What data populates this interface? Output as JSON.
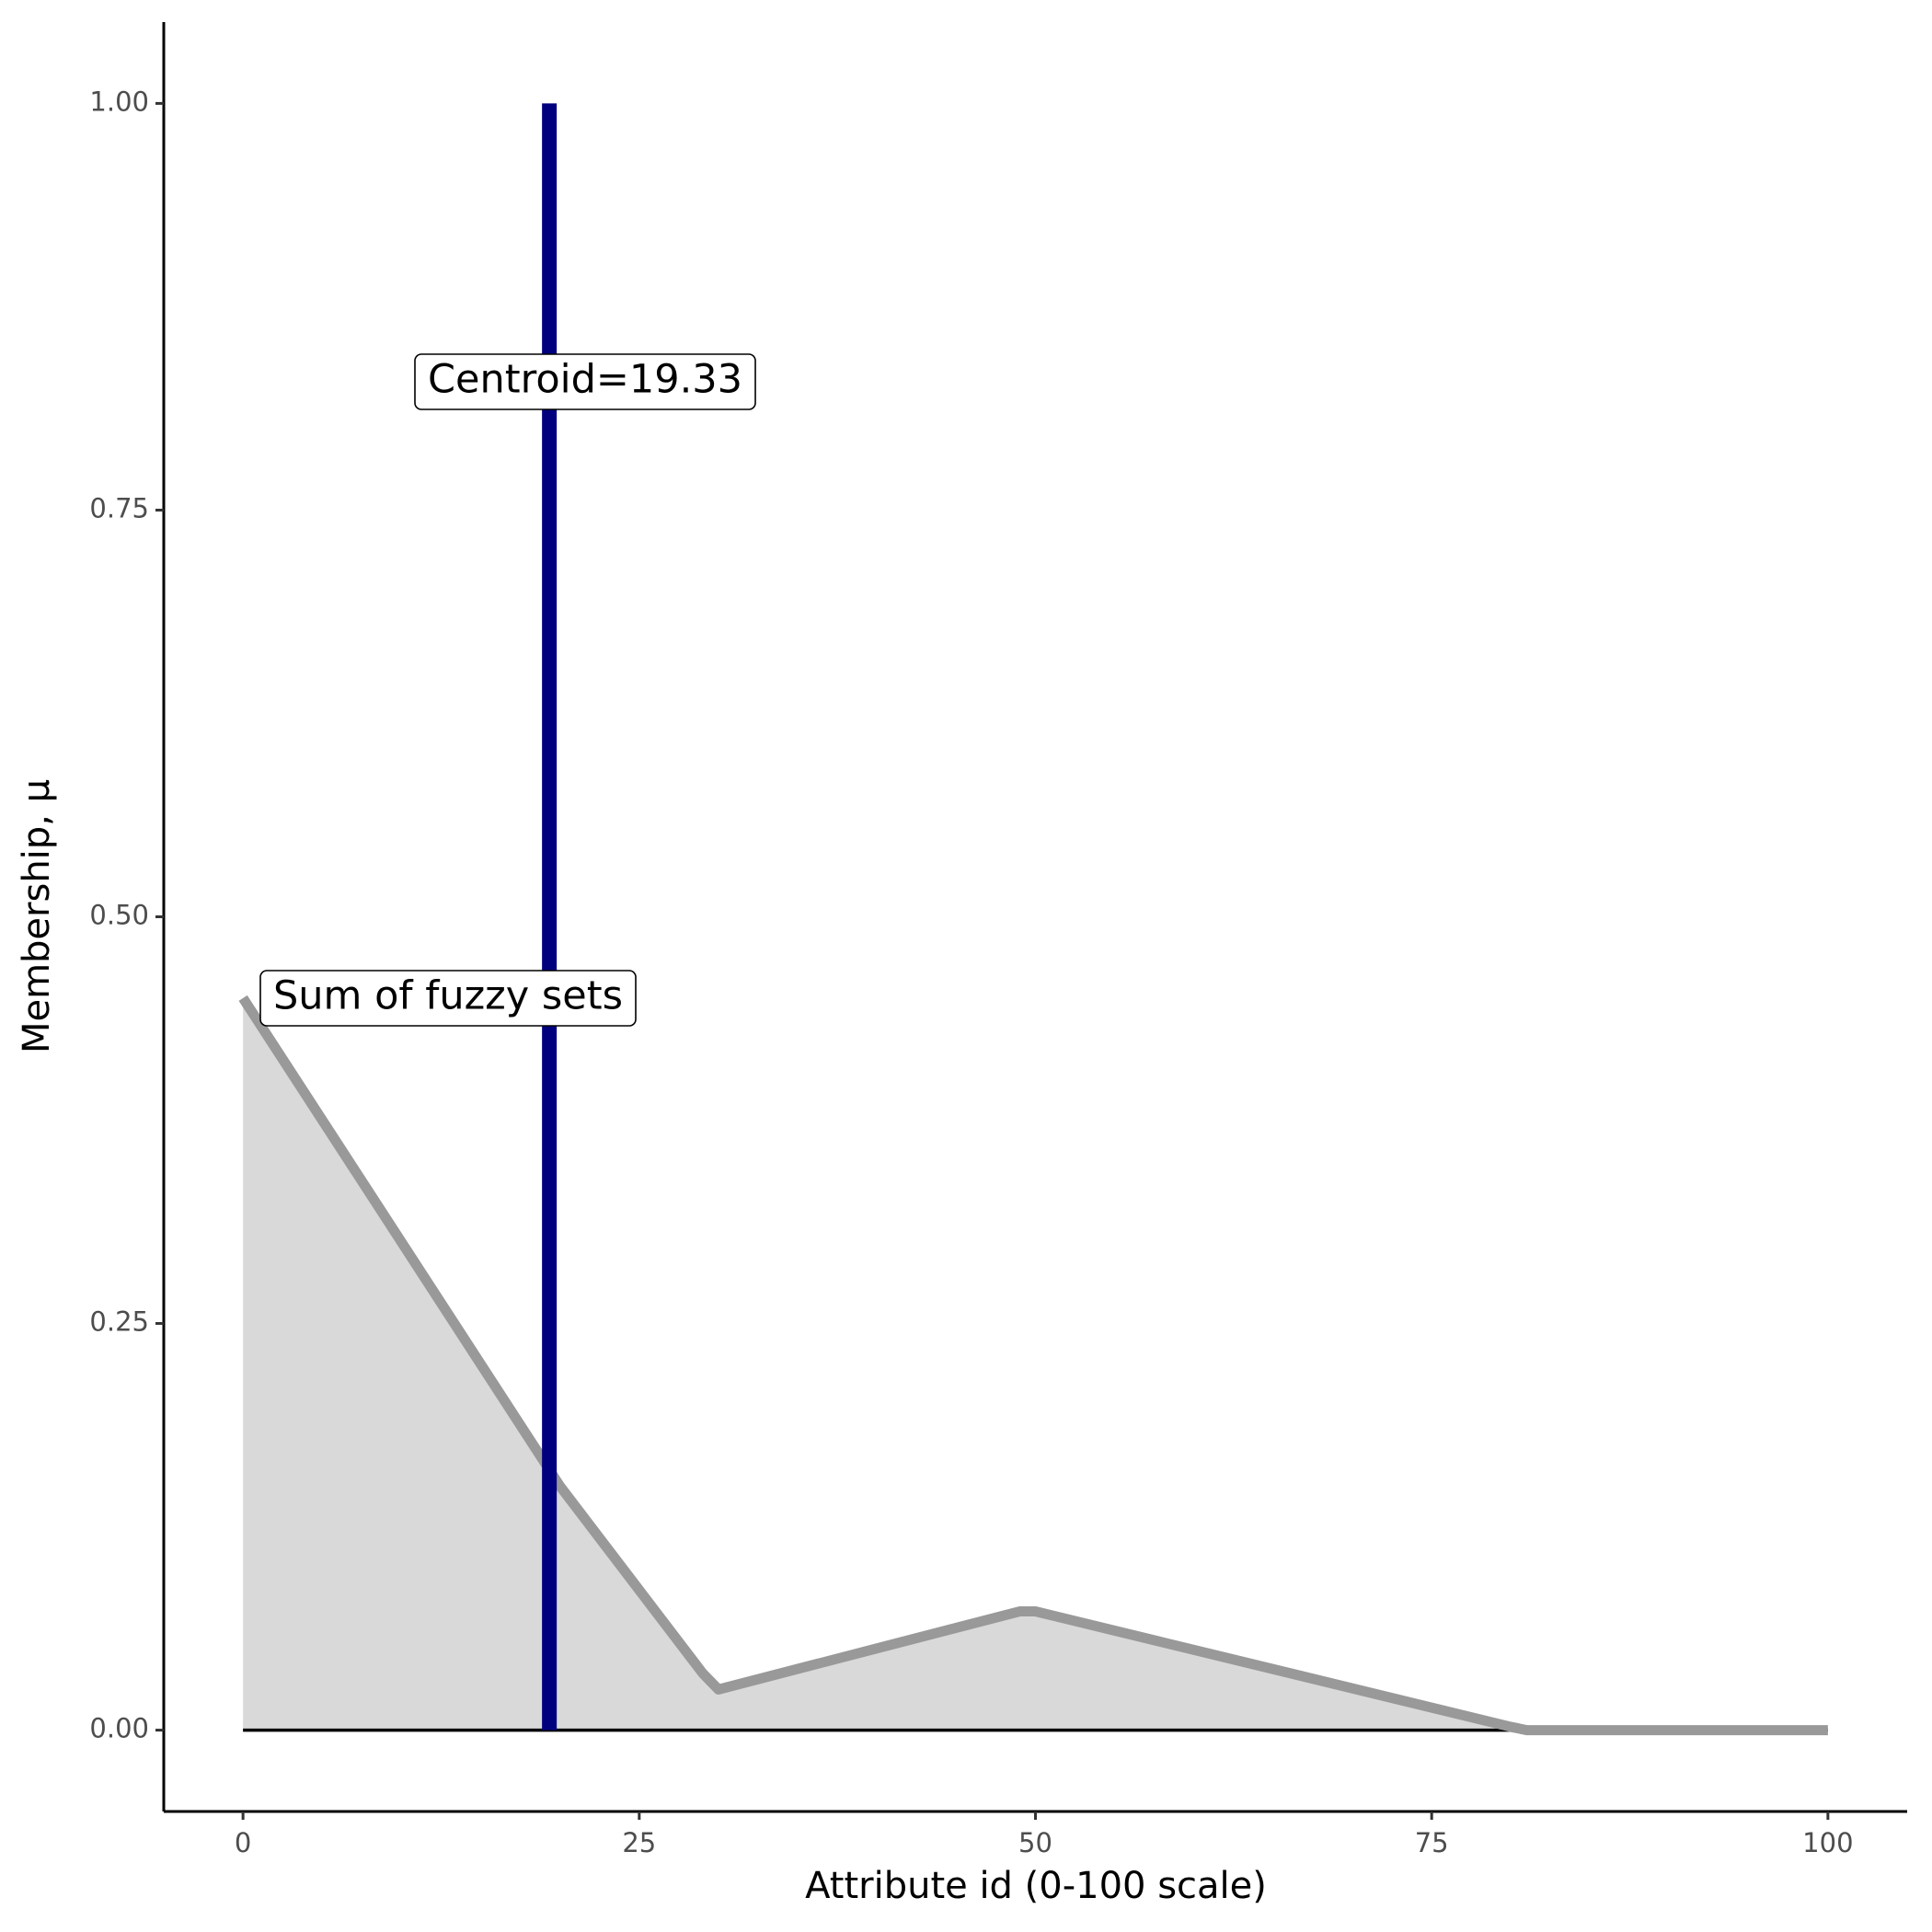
{
  "chart_data": {
    "type": "area-line",
    "x_label": "Attribute id (0-100 scale)",
    "y_label": "Membership, μ",
    "x": [
      0,
      20,
      29,
      30,
      49,
      50,
      80,
      81,
      100
    ],
    "series": [
      {
        "name": "Sum of fuzzy sets",
        "color": "#999999",
        "fill": "#d9d9d9",
        "values": [
          0.45,
          0.15,
          0.035,
          0.025,
          0.073,
          0.073,
          0.002,
          0,
          0
        ]
      }
    ],
    "centroid": 19.33,
    "centroid_color": "#00007f",
    "centroid_label": "Centroid=19.33",
    "xlim": [
      -5,
      105
    ],
    "ylim": [
      -0.05,
      1.05
    ],
    "xticks": [
      0,
      25,
      50,
      75,
      100
    ],
    "yticks": [
      {
        "value": 0,
        "label": "0.00"
      },
      {
        "value": 0.25,
        "label": "0.25"
      },
      {
        "value": 0.5,
        "label": "0.50"
      },
      {
        "value": 0.75,
        "label": "0.75"
      },
      {
        "value": 1,
        "label": "1.00"
      }
    ],
    "grid": false
  }
}
